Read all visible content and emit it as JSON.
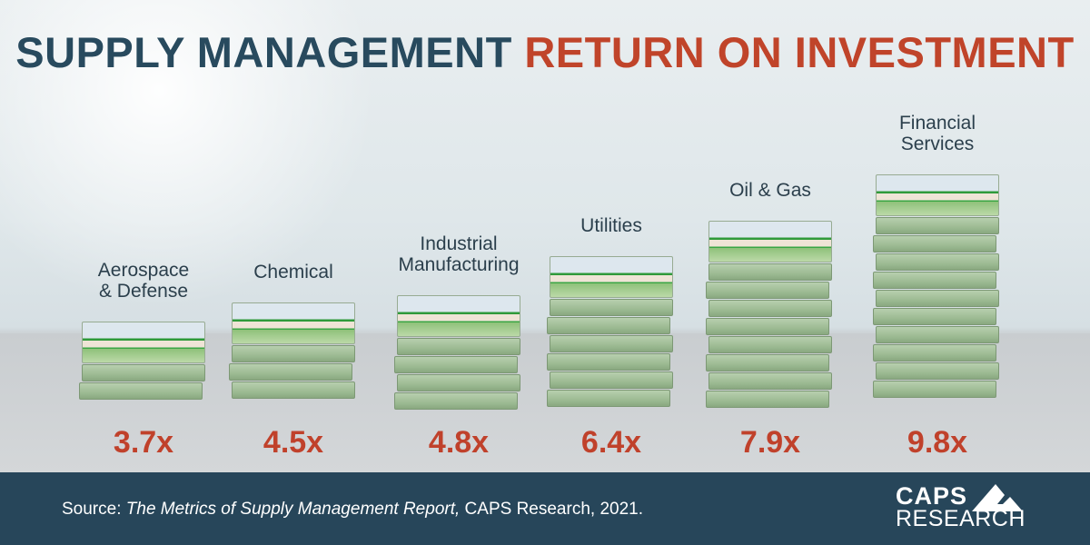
{
  "title": {
    "part1": "SUPPLY MANAGEMENT",
    "part2": "RETURN ON INVESTMENT"
  },
  "colors": {
    "title_dark": "#284a5e",
    "title_accent": "#c0442a",
    "value": "#c0412b",
    "footer": "#27465a"
  },
  "chart_data": {
    "type": "bar",
    "title": "SUPPLY MANAGEMENT RETURN ON INVESTMENT",
    "categories": [
      "Aerospace & Defense",
      "Chemical",
      "Industrial Manufacturing",
      "Utilities",
      "Oil & Gas",
      "Financial Services"
    ],
    "category_lines": [
      [
        "Aerospace",
        "& Defense"
      ],
      [
        "Chemical"
      ],
      [
        "Industrial",
        "Manufacturing"
      ],
      [
        "Utilities"
      ],
      [
        "Oil & Gas"
      ],
      [
        "Financial",
        "Services"
      ]
    ],
    "values": [
      3.7,
      4.5,
      4.8,
      6.4,
      7.9,
      9.8
    ],
    "value_labels": [
      "3.7x",
      "4.5x",
      "4.8x",
      "6.4x",
      "7.9x",
      "9.8x"
    ],
    "bar_style": "stacks of banknotes",
    "grid": false
  },
  "footer": {
    "source_prefix": "Source: ",
    "source_title": "The Metrics of Supply Management Report,",
    "source_suffix": " CAPS Research, 2021.",
    "logo_line1": "CAPS",
    "logo_line2": "RESEARCH"
  }
}
